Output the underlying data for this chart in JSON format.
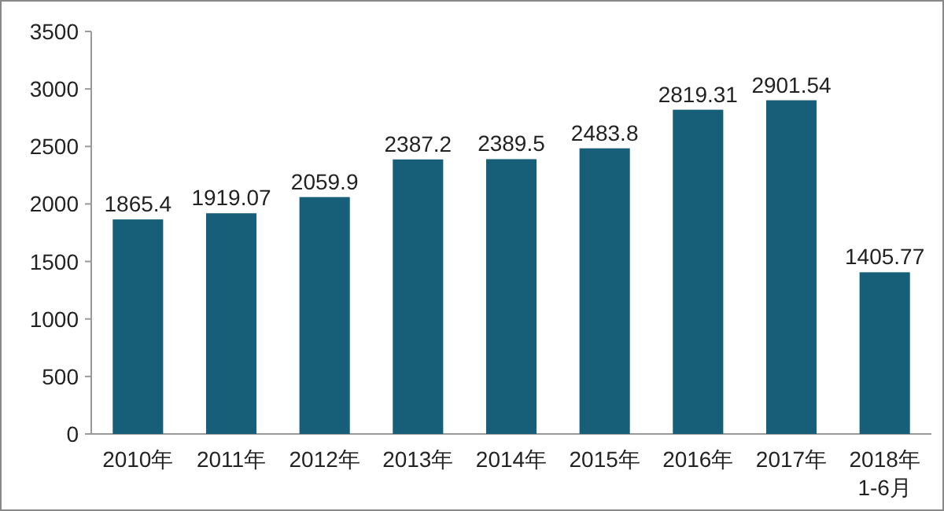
{
  "chart_data": {
    "type": "bar",
    "categories": [
      "2010年",
      "2011年",
      "2012年",
      "2013年",
      "2014年",
      "2015年",
      "2016年",
      "2017年",
      "2018年\n1-6月"
    ],
    "values": [
      1865.4,
      1919.07,
      2059.9,
      2387.2,
      2389.5,
      2483.8,
      2819.31,
      2901.54,
      1405.77
    ],
    "color": "#175e78",
    "ylim": [
      0,
      3500
    ],
    "yticks": [
      0,
      500,
      1000,
      1500,
      2000,
      2500,
      3000,
      3500
    ],
    "data_labels": true,
    "grid": false
  }
}
